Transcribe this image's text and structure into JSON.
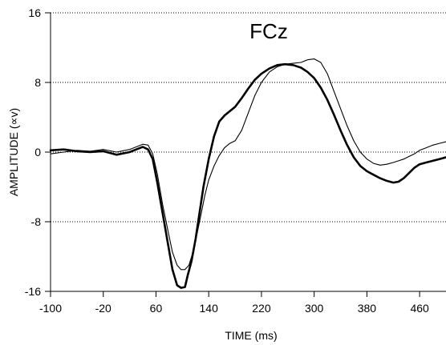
{
  "chart_data": {
    "type": "line",
    "title": "FCz",
    "xlabel": "TIME (ms)",
    "ylabel": "AMPLITUDE (∝v)",
    "xlim": [
      -100,
      500
    ],
    "ylim": [
      -16,
      16
    ],
    "xticks": [
      -100,
      -20,
      60,
      140,
      220,
      300,
      380,
      460
    ],
    "yticks": [
      -16,
      -8,
      0,
      8,
      16
    ],
    "grid": "horizontal dotted at y ticks",
    "series": [
      {
        "style": "thick",
        "color": "#000000",
        "x": [
          -100,
          -80,
          -60,
          -40,
          -20,
          0,
          20,
          30,
          40,
          48,
          55,
          62,
          70,
          78,
          85,
          92,
          98,
          104,
          108,
          114,
          120,
          126,
          132,
          140,
          148,
          156,
          164,
          172,
          180,
          190,
          200,
          210,
          220,
          232,
          244,
          256,
          268,
          280,
          290,
          300,
          310,
          320,
          330,
          340,
          350,
          360,
          370,
          380,
          390,
          400,
          410,
          420,
          428,
          436,
          444,
          452,
          460,
          470,
          480,
          490,
          500
        ],
        "y": [
          0.2,
          0.3,
          0.1,
          0.0,
          0.1,
          -0.3,
          0.0,
          0.3,
          0.6,
          0.3,
          -0.8,
          -3.5,
          -7.0,
          -10.5,
          -13.5,
          -15.3,
          -15.6,
          -15.5,
          -14.2,
          -12.5,
          -10.0,
          -7.0,
          -4.0,
          -0.8,
          1.8,
          3.5,
          4.2,
          4.7,
          5.2,
          6.2,
          7.3,
          8.3,
          9.0,
          9.6,
          10.0,
          10.1,
          10.0,
          9.7,
          9.2,
          8.5,
          7.4,
          6.0,
          4.3,
          2.5,
          0.8,
          -0.6,
          -1.6,
          -2.2,
          -2.6,
          -3.0,
          -3.3,
          -3.5,
          -3.4,
          -3.0,
          -2.4,
          -1.8,
          -1.4,
          -1.2,
          -1.0,
          -0.8,
          -0.6
        ]
      },
      {
        "style": "thin",
        "color": "#000000",
        "x": [
          -100,
          -80,
          -60,
          -40,
          -20,
          0,
          20,
          30,
          40,
          48,
          55,
          62,
          70,
          78,
          85,
          92,
          98,
          104,
          110,
          116,
          122,
          128,
          134,
          140,
          148,
          156,
          164,
          172,
          180,
          190,
          200,
          210,
          220,
          232,
          244,
          256,
          268,
          280,
          290,
          300,
          310,
          320,
          330,
          340,
          350,
          360,
          370,
          380,
          390,
          400,
          410,
          420,
          428,
          436,
          444,
          452,
          460,
          470,
          480,
          490,
          500
        ],
        "y": [
          -0.2,
          0.0,
          0.2,
          0.1,
          0.3,
          0.0,
          0.3,
          0.6,
          0.9,
          0.8,
          -0.2,
          -2.5,
          -6.0,
          -9.0,
          -11.5,
          -13.0,
          -13.5,
          -13.5,
          -13.0,
          -11.5,
          -9.5,
          -7.3,
          -5.0,
          -3.2,
          -1.6,
          -0.4,
          0.5,
          1.0,
          1.3,
          2.5,
          4.5,
          6.5,
          8.0,
          9.2,
          9.8,
          10.1,
          10.2,
          10.3,
          10.6,
          10.7,
          10.3,
          9.0,
          7.0,
          5.0,
          3.0,
          1.3,
          0.0,
          -0.8,
          -1.3,
          -1.5,
          -1.4,
          -1.2,
          -1.0,
          -0.8,
          -0.5,
          -0.2,
          0.2,
          0.5,
          0.8,
          1.0,
          1.2
        ]
      }
    ]
  }
}
